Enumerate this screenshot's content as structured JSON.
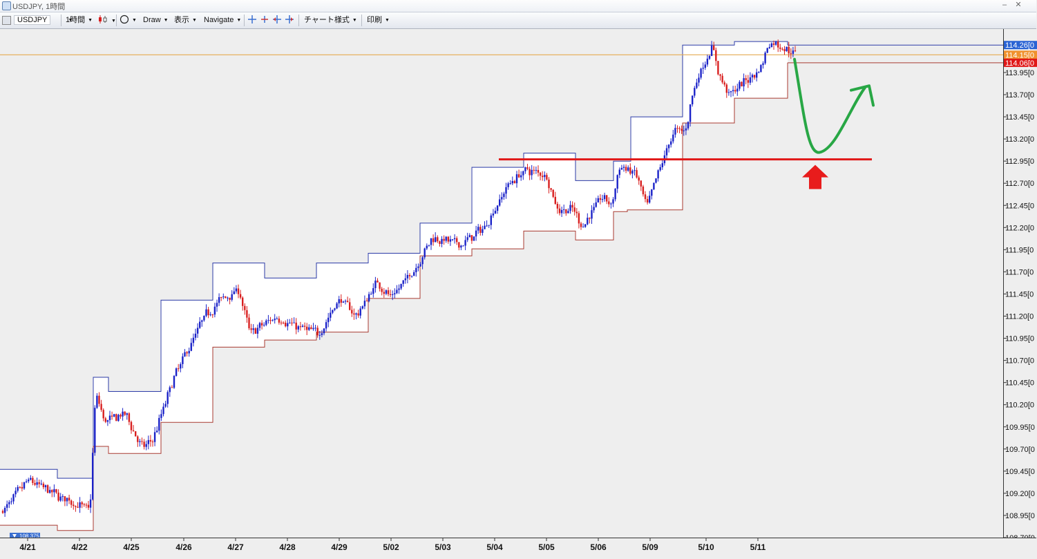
{
  "window": {
    "title": "USDJPY, 1時間",
    "minimize_glyph": "–",
    "close_glyph": "✕"
  },
  "toolbar": {
    "symbol": "USDJPY",
    "timeframe": "1時間",
    "draw": "Draw",
    "display": "表示",
    "navigate": "Navigate",
    "chart_style": "チャート様式",
    "print": "印刷"
  },
  "chart_data": {
    "type": "candlestick",
    "title": "",
    "xlabel": "",
    "ylabel": "",
    "ylim": [
      108.7,
      114.45
    ],
    "y_ticks": [
      108.7,
      108.95,
      109.2,
      109.45,
      109.7,
      109.95,
      110.2,
      110.45,
      110.7,
      110.95,
      111.2,
      111.45,
      111.7,
      111.95,
      112.2,
      112.45,
      112.7,
      112.95,
      113.2,
      113.45,
      113.7,
      113.95
    ],
    "y_tick_labels": [
      "108.70[0",
      "108.95[0",
      "109.20[0",
      "109.45[0",
      "109.70[0",
      "109.95[0",
      "110.20[0",
      "110.45[0",
      "110.70[0",
      "110.95[0",
      "111.20[0",
      "111.45[0",
      "111.70[0",
      "111.95[0",
      "112.20[0",
      "112.45[0",
      "112.70[0",
      "112.95[0",
      "113.20[0",
      "113.45[0",
      "113.70[0",
      "113.95[0"
    ],
    "x_categories": [
      "4/21",
      "4/22",
      "4/25",
      "4/26",
      "4/27",
      "4/28",
      "4/29",
      "5/02",
      "5/03",
      "5/04",
      "5/05",
      "5/06",
      "5/09",
      "5/10",
      "5/11"
    ],
    "colors": {
      "up": "#1a22c8",
      "down": "#d81e1e",
      "range_high": "#2b3aa6",
      "range_low": "#a83a30",
      "level": "#e4aa50",
      "support": "#e01818",
      "forecast": "#28a745"
    },
    "daily_ranges": [
      {
        "day": "4/21",
        "high": 109.47,
        "low": 108.84
      },
      {
        "day": "4/22",
        "high": 109.37,
        "low": 108.85
      },
      {
        "day": "4/25",
        "high": 110.51,
        "low": 109.73
      },
      {
        "day": "4/26",
        "high": 110.35,
        "low": 109.65
      },
      {
        "day": "4/27",
        "high": 111.38,
        "low": 110.0
      },
      {
        "day": "4/28",
        "high": 111.8,
        "low": 110.85
      },
      {
        "day": "4/29",
        "high": 111.6,
        "low": 111.05
      },
      {
        "day": "5/02",
        "high": 111.73,
        "low": 111.02
      },
      {
        "day": "5/03",
        "high": 111.91,
        "low": 111.4
      },
      {
        "day": "5/04",
        "high": 112.25,
        "low": 111.88
      },
      {
        "day": "5/05",
        "high": 112.88,
        "low": 111.98
      },
      {
        "day": "5/06",
        "high": 113.04,
        "low": 112.16
      },
      {
        "day": "5/09",
        "high": 112.73,
        "low": 112.06
      },
      {
        "day": "5/10",
        "high": 112.95,
        "low": 112.38
      },
      {
        "day": "5/11",
        "high": 113.38,
        "low": 112.38
      }
    ],
    "price_markers": [
      {
        "label": "114.26[0",
        "value": 114.26,
        "bg": "#2a63d4"
      },
      {
        "label": "114.15[0",
        "value": 114.15,
        "bg": "#f0922e"
      },
      {
        "label": "114.06[0",
        "value": 114.06,
        "bg": "#e01818"
      }
    ],
    "horizontal_levels": [
      114.15
    ],
    "support_level": 112.97,
    "current_low_label": "108.375",
    "annotations": [
      "support line at 112.97",
      "red up arrow below support",
      "green forecast path: dip to support then rise"
    ]
  }
}
